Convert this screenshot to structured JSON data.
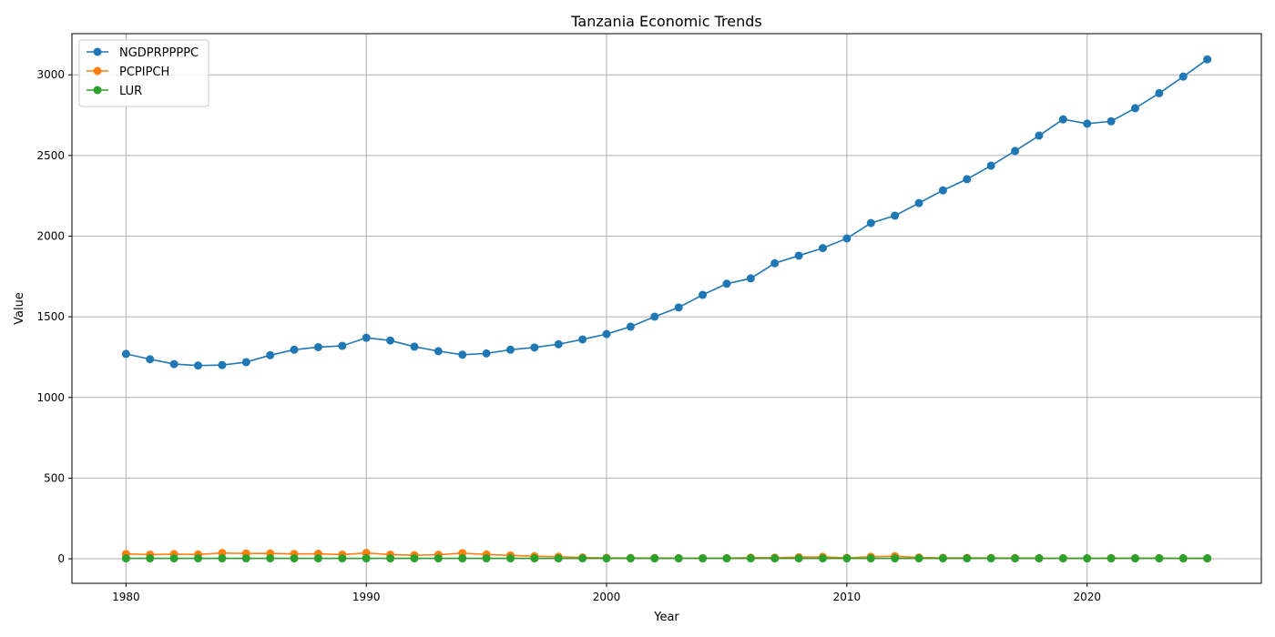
{
  "chart_data": {
    "type": "line",
    "title": "Tanzania Economic Trends",
    "xlabel": "Year",
    "ylabel": "Value",
    "xlim": [
      1977.75,
      2027.25
    ],
    "ylim": [
      -152,
      3255
    ],
    "xticks": [
      1980,
      1990,
      2000,
      2010,
      2020
    ],
    "yticks": [
      0,
      500,
      1000,
      1500,
      2000,
      2500,
      3000
    ],
    "grid": true,
    "legend_position": "top-left",
    "x": [
      1980,
      1981,
      1982,
      1983,
      1984,
      1985,
      1986,
      1987,
      1988,
      1989,
      1990,
      1991,
      1992,
      1993,
      1994,
      1995,
      1996,
      1997,
      1998,
      1999,
      2000,
      2001,
      2002,
      2003,
      2004,
      2005,
      2006,
      2007,
      2008,
      2009,
      2010,
      2011,
      2012,
      2013,
      2014,
      2015,
      2016,
      2017,
      2018,
      2019,
      2020,
      2021,
      2022,
      2023,
      2024,
      2025
    ],
    "series": [
      {
        "name": "NGDPRPPPPC",
        "color": "#1f77b4",
        "values": [
          1270,
          1237,
          1207,
          1198,
          1201,
          1219,
          1262,
          1296,
          1312,
          1320,
          1370,
          1353,
          1315,
          1287,
          1265,
          1273,
          1296,
          1310,
          1330,
          1360,
          1393,
          1439,
          1501,
          1558,
          1636,
          1705,
          1738,
          1832,
          1879,
          1926,
          1986,
          2081,
          2127,
          2205,
          2284,
          2353,
          2437,
          2528,
          2623,
          2724,
          2697,
          2712,
          2793,
          2886,
          2989,
          3096
        ]
      },
      {
        "name": "PCPIPCH",
        "color": "#ff7f0e",
        "values": [
          30,
          26,
          29,
          27,
          36,
          33,
          33,
          30,
          31,
          26,
          36,
          26,
          22,
          25,
          35,
          27,
          21,
          16,
          13,
          8,
          6,
          5,
          5,
          4,
          4,
          4,
          7,
          7,
          10,
          12,
          6,
          13,
          16,
          8,
          6,
          6,
          5,
          5,
          4,
          3,
          3,
          4,
          4,
          4,
          3,
          3
        ]
      },
      {
        "name": "LUR",
        "color": "#2ca02c",
        "values": [
          3,
          3,
          3,
          3,
          3,
          3,
          3,
          3,
          3,
          3,
          3,
          3,
          3,
          3,
          3,
          3,
          3,
          3,
          3,
          3,
          3,
          3,
          3,
          3,
          3,
          3,
          3,
          3,
          3,
          3,
          3,
          3,
          3,
          3,
          3,
          3,
          3,
          3,
          3,
          3,
          3,
          3,
          3,
          3,
          3,
          3
        ]
      }
    ]
  }
}
